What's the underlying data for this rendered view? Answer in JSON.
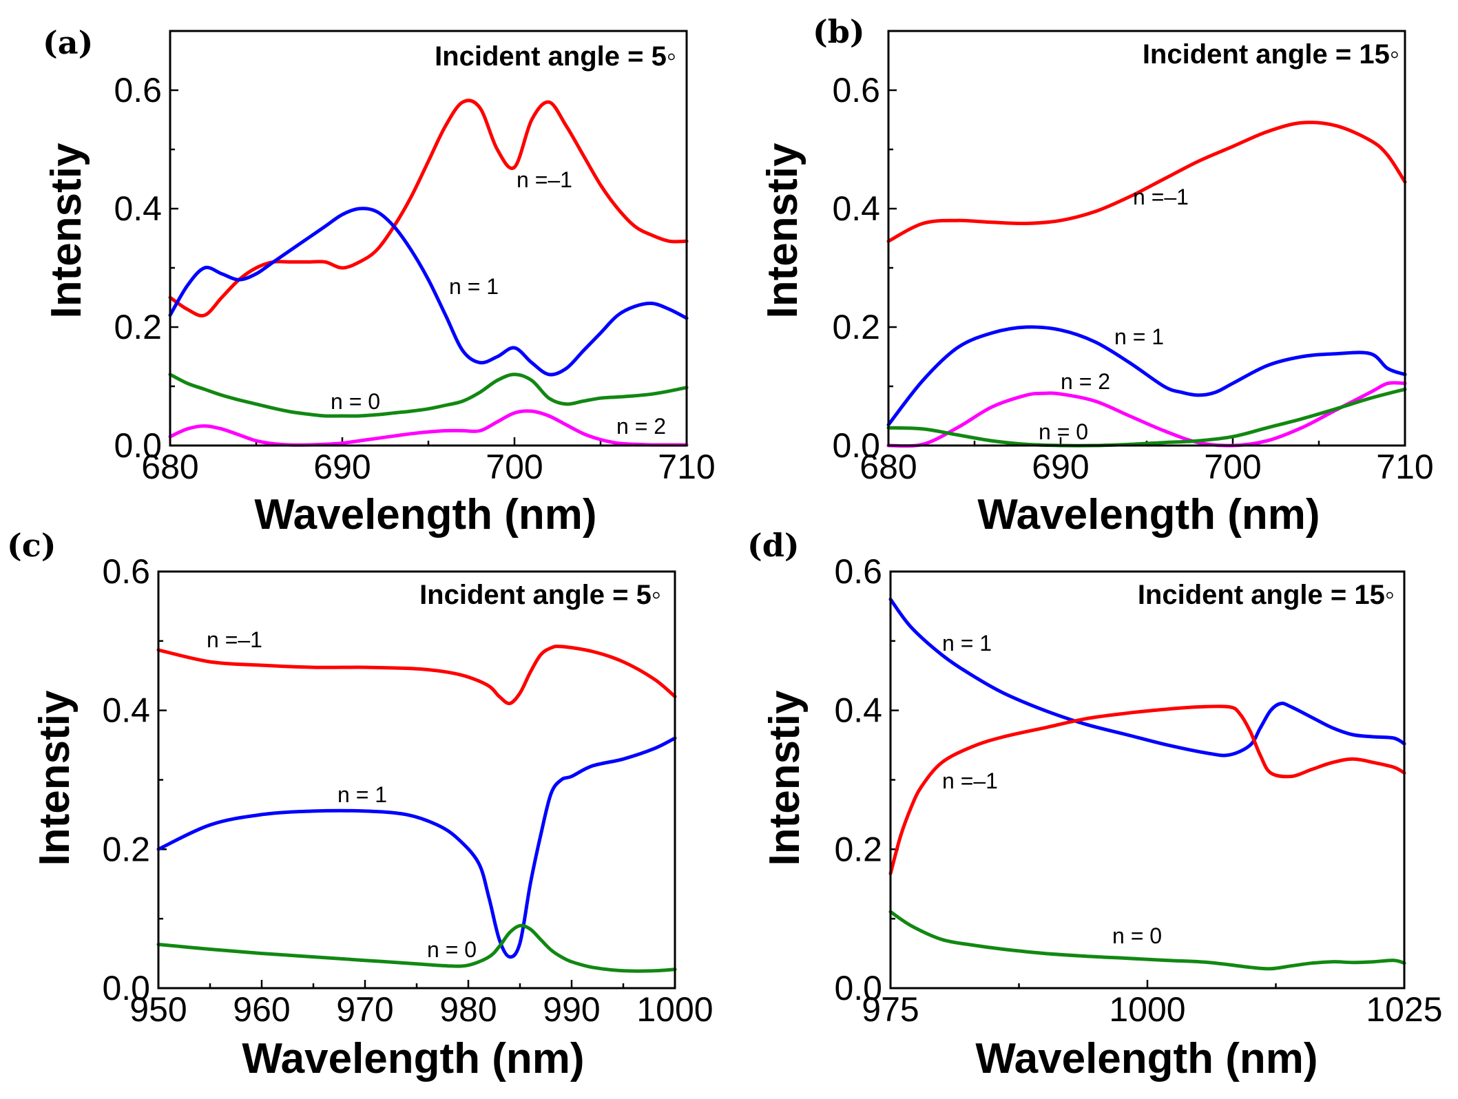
{
  "chart_data": [
    {
      "type": "line",
      "panel_label": "(a)",
      "annotation": "Incident angle = 5◦",
      "xlabel": "Wavelength (nm)",
      "ylabel": "Intenstiy",
      "xlim": [
        680,
        710
      ],
      "ylim": [
        0,
        0.7
      ],
      "x_ticks": [
        680,
        690,
        700,
        710
      ],
      "x_tick_labels": [
        "680",
        "690",
        "700",
        "710"
      ],
      "y_ticks": [
        0.0,
        0.2,
        0.4,
        0.6
      ],
      "y_tick_labels": [
        "0.0",
        "0.2",
        "0.4",
        "0.6"
      ],
      "series": [
        {
          "name": "n =–1",
          "color": "#ff0000",
          "x": [
            680,
            681,
            682,
            683,
            684,
            685,
            686,
            687,
            688,
            689,
            690,
            691,
            692,
            693,
            694,
            695,
            696,
            697,
            698,
            699,
            700,
            701,
            702,
            703,
            704,
            705,
            706,
            707,
            708,
            709,
            710
          ],
          "y": [
            0.25,
            0.23,
            0.22,
            0.25,
            0.28,
            0.3,
            0.31,
            0.31,
            0.31,
            0.31,
            0.3,
            0.31,
            0.33,
            0.37,
            0.42,
            0.48,
            0.54,
            0.58,
            0.57,
            0.5,
            0.47,
            0.55,
            0.58,
            0.54,
            0.49,
            0.44,
            0.4,
            0.37,
            0.355,
            0.345,
            0.345
          ]
        },
        {
          "name": "n = 1",
          "color": "#0000ff",
          "x": [
            680,
            681,
            682,
            683,
            684,
            685,
            686,
            687,
            688,
            689,
            690,
            691,
            692,
            693,
            694,
            695,
            696,
            697,
            698,
            699,
            700,
            701,
            702,
            703,
            704,
            705,
            706,
            707,
            708,
            709,
            710
          ],
          "y": [
            0.22,
            0.27,
            0.3,
            0.29,
            0.28,
            0.29,
            0.31,
            0.33,
            0.35,
            0.37,
            0.39,
            0.4,
            0.395,
            0.37,
            0.33,
            0.28,
            0.22,
            0.16,
            0.14,
            0.15,
            0.165,
            0.14,
            0.12,
            0.13,
            0.16,
            0.19,
            0.22,
            0.235,
            0.24,
            0.23,
            0.215
          ]
        },
        {
          "name": "n = 0",
          "color": "#118811",
          "x": [
            680,
            681,
            682,
            683,
            684,
            685,
            686,
            687,
            688,
            689,
            690,
            691,
            692,
            693,
            694,
            695,
            696,
            697,
            698,
            699,
            700,
            701,
            702,
            703,
            704,
            705,
            706,
            707,
            708,
            709,
            710
          ],
          "y": [
            0.12,
            0.105,
            0.095,
            0.085,
            0.077,
            0.07,
            0.063,
            0.057,
            0.053,
            0.05,
            0.05,
            0.05,
            0.052,
            0.055,
            0.058,
            0.062,
            0.068,
            0.075,
            0.09,
            0.11,
            0.12,
            0.11,
            0.08,
            0.07,
            0.075,
            0.08,
            0.082,
            0.084,
            0.087,
            0.092,
            0.098
          ]
        },
        {
          "name": "n =  2",
          "color": "#ff00ff",
          "x": [
            680,
            681,
            682,
            683,
            684,
            685,
            686,
            687,
            688,
            689,
            690,
            691,
            692,
            693,
            694,
            695,
            696,
            697,
            698,
            699,
            700,
            701,
            702,
            703,
            704,
            705,
            706,
            707,
            708,
            709,
            710
          ],
          "y": [
            0.015,
            0.028,
            0.033,
            0.028,
            0.018,
            0.008,
            0.003,
            0.001,
            0.001,
            0.002,
            0.004,
            0.008,
            0.012,
            0.016,
            0.02,
            0.023,
            0.025,
            0.025,
            0.025,
            0.04,
            0.055,
            0.058,
            0.05,
            0.035,
            0.02,
            0.01,
            0.004,
            0.002,
            0.001,
            0.001,
            0.001
          ]
        }
      ],
      "curve_labels": [
        "n =–1",
        "n = 1",
        "n = 0",
        "n =  2"
      ]
    },
    {
      "type": "line",
      "panel_label": "(b)",
      "annotation": "Incident angle = 15◦",
      "xlabel": "Wavelength (nm)",
      "ylabel": "Intenstiy",
      "xlim": [
        680,
        710
      ],
      "ylim": [
        0,
        0.7
      ],
      "x_ticks": [
        680,
        690,
        700,
        710
      ],
      "x_tick_labels": [
        "680",
        "690",
        "700",
        "710"
      ],
      "y_ticks": [
        0.0,
        0.2,
        0.4,
        0.6
      ],
      "y_tick_labels": [
        "0.0",
        "0.2",
        "0.4",
        "0.6"
      ],
      "series": [
        {
          "name": "n =–1",
          "color": "#ff0000",
          "x": [
            680,
            682,
            684,
            686,
            688,
            690,
            692,
            694,
            696,
            698,
            700,
            702,
            704,
            706,
            708,
            709,
            710
          ],
          "y": [
            0.345,
            0.375,
            0.38,
            0.377,
            0.375,
            0.38,
            0.395,
            0.42,
            0.45,
            0.48,
            0.505,
            0.53,
            0.545,
            0.54,
            0.515,
            0.49,
            0.445
          ]
        },
        {
          "name": "n = 1",
          "color": "#0000ff",
          "x": [
            680,
            682,
            684,
            686,
            688,
            690,
            692,
            694,
            696,
            697,
            698,
            699,
            700,
            702,
            704,
            706,
            708,
            709,
            710
          ],
          "y": [
            0.035,
            0.11,
            0.165,
            0.19,
            0.2,
            0.195,
            0.175,
            0.14,
            0.1,
            0.09,
            0.085,
            0.09,
            0.105,
            0.135,
            0.15,
            0.155,
            0.155,
            0.13,
            0.12
          ]
        },
        {
          "name": "n =  2",
          "color": "#ff00ff",
          "x": [
            680,
            682,
            684,
            686,
            688,
            689,
            690,
            692,
            694,
            696,
            698,
            700,
            702,
            704,
            706,
            708,
            709,
            710
          ],
          "y": [
            0.0,
            0.002,
            0.03,
            0.065,
            0.085,
            0.088,
            0.087,
            0.075,
            0.05,
            0.025,
            0.005,
            0.0,
            0.008,
            0.03,
            0.06,
            0.09,
            0.105,
            0.105
          ]
        },
        {
          "name": "n = 0",
          "color": "#118811",
          "x": [
            680,
            682,
            684,
            686,
            688,
            690,
            692,
            694,
            696,
            698,
            700,
            702,
            704,
            706,
            708,
            710
          ],
          "y": [
            0.03,
            0.028,
            0.018,
            0.008,
            0.002,
            0.0,
            0.0,
            0.002,
            0.005,
            0.008,
            0.015,
            0.03,
            0.045,
            0.062,
            0.08,
            0.095
          ]
        }
      ],
      "curve_labels": [
        "n =–1",
        "n = 1",
        "n =  2",
        "n = 0"
      ]
    },
    {
      "type": "line",
      "panel_label": "(c)",
      "annotation": "Incident angle = 5◦",
      "xlabel": "Wavelength (nm)",
      "ylabel": "Intenstiy",
      "xlim": [
        950,
        1000
      ],
      "ylim": [
        0,
        0.6
      ],
      "x_ticks": [
        950,
        960,
        970,
        980,
        990,
        1000
      ],
      "x_tick_labels": [
        "950",
        "960",
        "970",
        "980",
        "990",
        "1000"
      ],
      "y_ticks": [
        0.0,
        0.2,
        0.4,
        0.6
      ],
      "y_tick_labels": [
        "0.0",
        "0.2",
        "0.4",
        "0.6"
      ],
      "series": [
        {
          "name": "n =–1",
          "color": "#ff0000",
          "x": [
            950,
            955,
            960,
            965,
            970,
            975,
            978,
            980,
            982,
            983,
            984,
            985,
            986,
            987,
            988,
            989,
            992,
            995,
            998,
            1000
          ],
          "y": [
            0.487,
            0.47,
            0.465,
            0.462,
            0.462,
            0.46,
            0.455,
            0.448,
            0.435,
            0.42,
            0.41,
            0.425,
            0.455,
            0.48,
            0.49,
            0.492,
            0.485,
            0.47,
            0.445,
            0.42
          ]
        },
        {
          "name": "n = 1",
          "color": "#0000ff",
          "x": [
            950,
            955,
            960,
            965,
            970,
            974,
            977,
            979,
            981,
            982,
            983,
            984,
            985,
            986,
            987,
            988,
            989,
            990,
            992,
            995,
            998,
            1000
          ],
          "y": [
            0.2,
            0.235,
            0.25,
            0.255,
            0.255,
            0.25,
            0.235,
            0.215,
            0.18,
            0.13,
            0.07,
            0.045,
            0.065,
            0.15,
            0.22,
            0.28,
            0.3,
            0.305,
            0.32,
            0.33,
            0.345,
            0.36
          ]
        },
        {
          "name": "n = 0",
          "color": "#118811",
          "x": [
            950,
            955,
            960,
            965,
            970,
            975,
            978,
            980,
            982,
            983,
            984,
            985,
            986,
            987,
            988,
            989,
            990,
            992,
            995,
            998,
            1000
          ],
          "y": [
            0.063,
            0.056,
            0.05,
            0.045,
            0.04,
            0.035,
            0.032,
            0.033,
            0.045,
            0.06,
            0.08,
            0.09,
            0.085,
            0.07,
            0.055,
            0.045,
            0.038,
            0.03,
            0.025,
            0.025,
            0.027
          ]
        }
      ],
      "curve_labels": [
        "n =–1",
        "n = 1",
        "n = 0"
      ]
    },
    {
      "type": "line",
      "panel_label": "(d)",
      "annotation": "Incident angle = 15◦",
      "xlabel": "Wavelength (nm)",
      "ylabel": "Intenstiy",
      "xlim": [
        975,
        1025
      ],
      "ylim": [
        0,
        0.6
      ],
      "x_ticks": [
        975,
        1000,
        1025
      ],
      "x_tick_labels": [
        "975",
        "1000",
        "1025"
      ],
      "y_ticks": [
        0.0,
        0.2,
        0.4,
        0.6
      ],
      "y_tick_labels": [
        "0.0",
        "0.2",
        "0.4",
        "0.6"
      ],
      "series": [
        {
          "name": "n = 1",
          "color": "#0000ff",
          "x": [
            975,
            977,
            980,
            983,
            986,
            990,
            994,
            998,
            1002,
            1006,
            1008,
            1010,
            1011,
            1012,
            1013,
            1014,
            1016,
            1018,
            1020,
            1022,
            1024,
            1025
          ],
          "y": [
            0.56,
            0.52,
            0.48,
            0.45,
            0.425,
            0.4,
            0.38,
            0.365,
            0.35,
            0.338,
            0.336,
            0.35,
            0.375,
            0.4,
            0.41,
            0.405,
            0.39,
            0.375,
            0.365,
            0.362,
            0.36,
            0.352
          ]
        },
        {
          "name": "n =–1",
          "color": "#ff0000",
          "x": [
            975,
            976,
            977,
            978,
            980,
            983,
            986,
            990,
            994,
            998,
            1002,
            1005,
            1008,
            1009,
            1010,
            1011,
            1012,
            1014,
            1016,
            1018,
            1020,
            1022,
            1024,
            1025
          ],
          "y": [
            0.165,
            0.22,
            0.26,
            0.29,
            0.325,
            0.348,
            0.362,
            0.375,
            0.388,
            0.396,
            0.402,
            0.405,
            0.405,
            0.395,
            0.37,
            0.335,
            0.31,
            0.305,
            0.315,
            0.325,
            0.33,
            0.325,
            0.318,
            0.31
          ]
        },
        {
          "name": "n = 0",
          "color": "#118811",
          "x": [
            975,
            977,
            980,
            983,
            986,
            990,
            994,
            998,
            1002,
            1006,
            1010,
            1012,
            1014,
            1016,
            1018,
            1020,
            1022,
            1024,
            1025
          ],
          "y": [
            0.11,
            0.09,
            0.07,
            0.062,
            0.056,
            0.05,
            0.046,
            0.043,
            0.04,
            0.037,
            0.03,
            0.028,
            0.032,
            0.036,
            0.038,
            0.037,
            0.038,
            0.04,
            0.036
          ]
        }
      ],
      "curve_labels": [
        "n = 1",
        "n =–1",
        "n = 0"
      ]
    }
  ]
}
